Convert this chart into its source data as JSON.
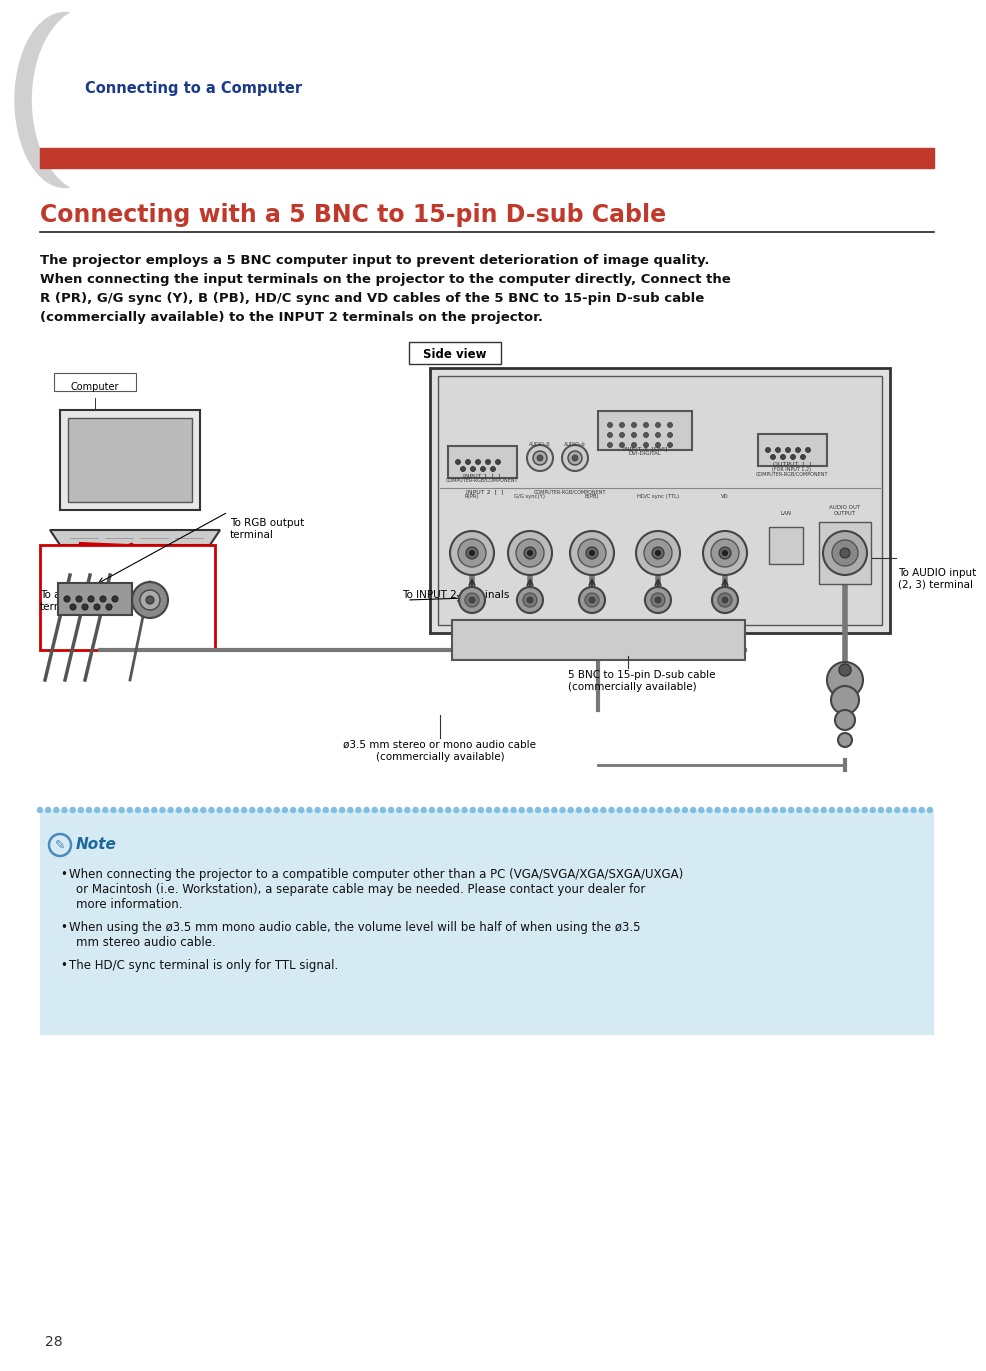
{
  "page_bg": "#ffffff",
  "tab_text": "Connecting to a Computer",
  "tab_text_color": "#1a3a8c",
  "red_bar_color": "#c0392b",
  "title": "Connecting with a 5 BNC to 15-pin D-sub Cable",
  "title_color": "#c0392b",
  "title_underline_color": "#333333",
  "body_text_color": "#111111",
  "body_lines": [
    "The projector employs a 5 BNC computer input to prevent deterioration of image quality.",
    "When connecting the input terminals on the projector to the computer directly, Connect the",
    "R (PR), G/G sync (Y), B (PB), HD/C sync and VD cables of the 5 BNC to 15-pin D-sub cable",
    "(commercially available) to the INPUT 2 terminals on the projector."
  ],
  "note_bg": "#d6eaf4",
  "note_border_color": "#7fbfdf",
  "note_title_color": "#1a6a9a",
  "note_title": "Note",
  "note_bullets": [
    "When connecting the projector to a compatible computer other than a PC (VGA/SVGA/XGA/SXGA/UXGA) or Macintosh (i.e. Workstation), a separate cable may be needed. Please contact your dealer for more information.",
    "When using the ø3.5 mm mono audio cable, the volume level will be half of when using the ø3.5 mm stereo audio cable.",
    "The HD/C sync terminal is only for TTL signal."
  ],
  "page_number": "28",
  "diagram_fg": "#111111",
  "diagram_gray": "#888888",
  "diagram_light": "#cccccc",
  "computer_label": "Computer",
  "side_view_label": "Side view",
  "rgb_label": "To RGB output\nterminal",
  "audio_out_label": "To audio output\nterminal",
  "input2_label": "To INPUT 2 terminals",
  "bnc_label": "5 BNC to 15-pin D-sub cable\n(commercially available)",
  "audio_cable_label": "ø3.5 mm stereo or mono audio cable\n(commercially available)",
  "audio_in_label": "To AUDIO input\n(2, 3) terminal"
}
